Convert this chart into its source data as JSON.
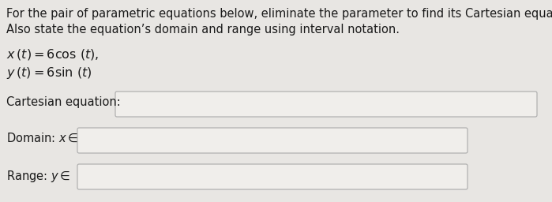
{
  "bg_color": "#e8e6e3",
  "text_color": "#1a1a1a",
  "line1": "For the pair of parametric equations below, eliminate the parameter to find its Cartesian equation",
  "line2": "Also state the equation’s domain and range using interval notation.",
  "eq1": "$x\\,(t) = 6\\cos\\,(t),$",
  "eq2": "$y\\,(t) = 6\\sin\\,(t)$",
  "label_cartesian": "Cartesian equation:",
  "label_domain": "Domain: $x \\in$",
  "label_range": "Range: $y \\in$",
  "box_color": "#f0eeeb",
  "box_edge_color": "#aaaaaa",
  "font_size_body": 10.5,
  "font_size_eq": 11.5
}
